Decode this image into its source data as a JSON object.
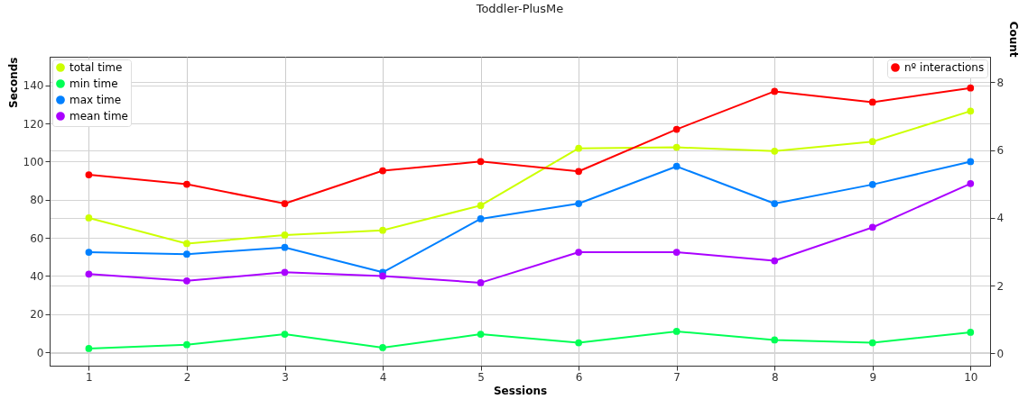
{
  "chart_data": {
    "type": "line",
    "title": "Toddler-PlusMe",
    "xlabel": "Sessions",
    "ylabel": "Seconds",
    "y2label": "Count",
    "x": [
      1,
      2,
      3,
      4,
      5,
      6,
      7,
      8,
      9,
      10
    ],
    "xlim": [
      0.6,
      10.2
    ],
    "xticks": [
      1,
      2,
      3,
      4,
      5,
      6,
      7,
      8,
      9,
      10
    ],
    "ylim": [
      -7,
      155
    ],
    "yticks": [
      0,
      20,
      40,
      60,
      80,
      100,
      120,
      140
    ],
    "y2lim": [
      -0.36,
      8.75
    ],
    "y2ticks": [
      0,
      2,
      4,
      6,
      8
    ],
    "grid": true,
    "legend": "top left",
    "marker": "circle",
    "line_style": "solid",
    "series": [
      {
        "name": "total time",
        "color": "#ccff00",
        "values": [
          70.5,
          57,
          61.5,
          64,
          77,
          107,
          107.5,
          105.5,
          110.5,
          126.5
        ]
      },
      {
        "name": "min time",
        "color": "#00ff55",
        "values": [
          2,
          4,
          9.5,
          2.5,
          9.5,
          5,
          11,
          6.5,
          5,
          10.5
        ]
      },
      {
        "name": "max time",
        "color": "#0080ff",
        "values": [
          52.5,
          51.5,
          55,
          42,
          70,
          78,
          97.5,
          78,
          88,
          100
        ]
      },
      {
        "name": "mean time",
        "color": "#aa00ff",
        "values": [
          41,
          37.5,
          42,
          40,
          36.5,
          52.5,
          52.5,
          48,
          65.5,
          88.5
        ]
      },
      {
        "name": "nº interactions",
        "color": "#ff0000",
        "axis": "y2",
        "values": [
          5.27,
          4.99,
          4.42,
          5.39,
          5.66,
          5.37,
          6.61,
          7.73,
          7.41,
          7.83
        ]
      }
    ]
  }
}
